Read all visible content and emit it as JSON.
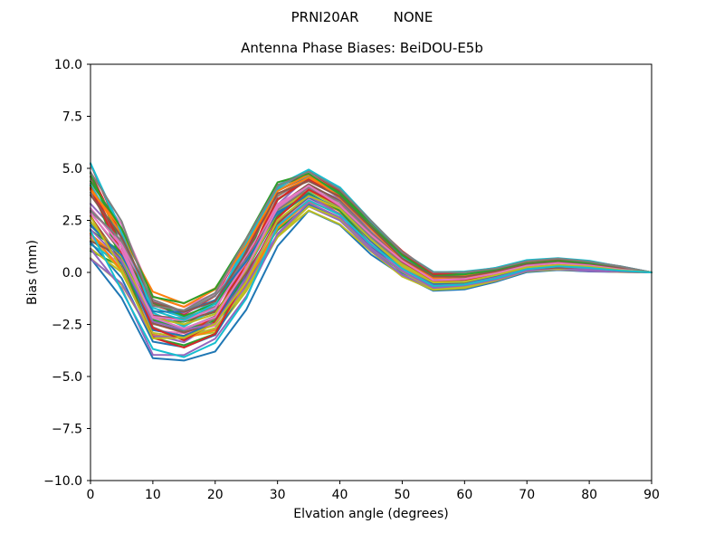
{
  "figure": {
    "suptitle": "PRNI20AR        NONE",
    "axes_title": "Antenna Phase Biases: BeiDOU-E5b",
    "xlabel": "Elvation angle (degrees)",
    "ylabel": "Bias (mm)",
    "background_color": "#ffffff",
    "spine_color": "#000000",
    "tick_color": "#000000"
  },
  "chart_data": {
    "type": "line",
    "suptitle": "PRNI20AR        NONE",
    "title": "Antenna Phase Biases: BeiDOU-E5b",
    "xlabel": "Elvation angle (degrees)",
    "ylabel": "Bias (mm)",
    "xlim": [
      0,
      90
    ],
    "ylim": [
      -10.0,
      10.0
    ],
    "xticks": [
      0,
      10,
      20,
      30,
      40,
      50,
      60,
      70,
      80,
      90
    ],
    "yticks": [
      -10.0,
      -7.5,
      -5.0,
      -2.5,
      0.0,
      2.5,
      5.0,
      7.5,
      10.0
    ],
    "grid": false,
    "legend_position": "none",
    "x": [
      0,
      5,
      10,
      15,
      20,
      25,
      30,
      35,
      40,
      45,
      50,
      55,
      60,
      65,
      70,
      75,
      80,
      85,
      90
    ],
    "ensemble": {
      "description": "bundle of antenna phase bias curves, one per satellite/antenna, band values in mm",
      "n_series": 50,
      "mean": [
        2.9,
        0.8,
        -2.4,
        -2.75,
        -2.1,
        0.2,
        3.0,
        4.05,
        3.25,
        1.75,
        0.45,
        -0.4,
        -0.35,
        -0.1,
        0.3,
        0.4,
        0.3,
        0.15,
        0.0
      ],
      "half_spread": [
        2.6,
        2.3,
        1.9,
        1.6,
        1.85,
        2.0,
        1.85,
        1.2,
        0.95,
        0.85,
        0.65,
        0.5,
        0.45,
        0.35,
        0.28,
        0.3,
        0.25,
        0.15,
        0.0
      ],
      "band_max": [
        5.5,
        3.1,
        -0.5,
        -1.15,
        -0.25,
        2.2,
        4.85,
        5.25,
        4.2,
        2.6,
        1.1,
        0.1,
        0.1,
        0.25,
        0.58,
        0.7,
        0.55,
        0.3,
        0.0
      ],
      "band_min": [
        0.3,
        -1.5,
        -4.3,
        -4.35,
        -3.95,
        -1.8,
        1.15,
        2.85,
        2.3,
        0.9,
        -0.2,
        -0.9,
        -0.8,
        -0.45,
        0.02,
        0.1,
        0.05,
        0.0,
        0.0
      ],
      "mix": [
        0.9,
        0.55,
        0.35,
        0.3,
        0.35,
        0.55,
        0.75,
        0.85,
        0.9,
        0.92,
        0.92,
        0.9,
        0.9,
        0.92,
        0.95,
        0.95,
        0.95,
        0.97,
        1.0
      ],
      "jitter": 0.12,
      "seed": 7,
      "line_width": 2,
      "colors": [
        "#1f77b4",
        "#ff7f0e",
        "#2ca02c",
        "#d62728",
        "#9467bd",
        "#8c564b",
        "#e377c2",
        "#7f7f7f",
        "#bcbd22",
        "#17becf"
      ]
    }
  }
}
